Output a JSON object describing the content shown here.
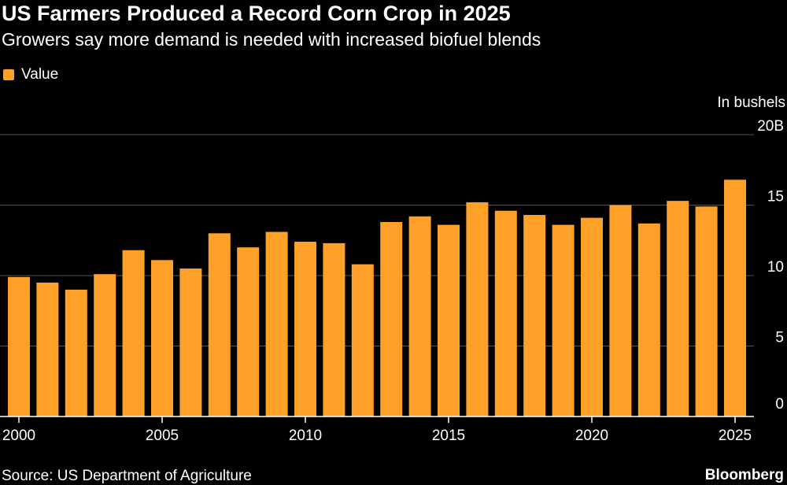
{
  "source": "Source: US Department of Agriculture",
  "brand": "Bloomberg",
  "colors": {
    "bar": "#FFA028",
    "grid": "#555555",
    "axis": "#ffffff",
    "background": "#000000"
  },
  "chart_data": {
    "type": "bar",
    "title": "US Farmers Produced a Record Corn Crop in 2025",
    "subtitle": "Growers say more demand is needed with increased biofuel blends",
    "unit_label": "In bushels",
    "legend": [
      "Value"
    ],
    "legend_position": "top-left",
    "y_axis_side": "right",
    "grid": true,
    "ylim": [
      0,
      20
    ],
    "y_ticks": [
      {
        "value": 0,
        "label": "0"
      },
      {
        "value": 5,
        "label": "5"
      },
      {
        "value": 10,
        "label": "10"
      },
      {
        "value": 15,
        "label": "15"
      },
      {
        "value": 20,
        "label": "20B"
      }
    ],
    "x_tick_labels": [
      "2000",
      "2005",
      "2010",
      "2015",
      "2020",
      "2025"
    ],
    "series": [
      {
        "name": "Value",
        "x": [
          2000,
          2001,
          2002,
          2003,
          2004,
          2005,
          2006,
          2007,
          2008,
          2009,
          2010,
          2011,
          2012,
          2013,
          2014,
          2015,
          2016,
          2017,
          2018,
          2019,
          2020,
          2021,
          2022,
          2023,
          2024,
          2025
        ],
        "values": [
          9.9,
          9.5,
          9.0,
          10.1,
          11.8,
          11.1,
          10.5,
          13.0,
          12.0,
          13.1,
          12.4,
          12.3,
          10.8,
          13.8,
          14.2,
          13.6,
          15.2,
          14.6,
          14.3,
          13.6,
          14.1,
          15.0,
          13.7,
          15.3,
          14.9,
          16.8
        ]
      }
    ]
  }
}
